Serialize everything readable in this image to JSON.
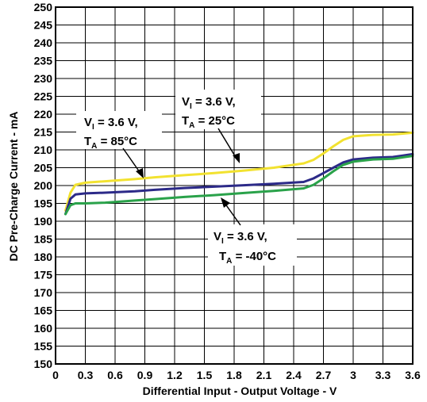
{
  "chart_data": {
    "type": "line",
    "xlabel": "Differential Input - Output Voltage - V",
    "ylabel": "DC Pre-Charge Current - mA",
    "xlim": [
      0,
      3.6
    ],
    "ylim": [
      150,
      250
    ],
    "x_ticks": [
      "0",
      "0.3",
      "0.6",
      "0.9",
      "1.2",
      "1.5",
      "1.8",
      "2.1",
      "2.4",
      "2.7",
      "3",
      "3.3",
      "3.6"
    ],
    "y_ticks": [
      "150",
      "155",
      "160",
      "165",
      "170",
      "175",
      "180",
      "185",
      "190",
      "195",
      "200",
      "205",
      "210",
      "215",
      "220",
      "225",
      "230",
      "235",
      "240",
      "245",
      "250"
    ],
    "grid": true,
    "series": [
      {
        "color": "#f2e230",
        "x": [
          0.1,
          0.15,
          0.2,
          0.3,
          0.5,
          0.8,
          1.0,
          1.3,
          1.6,
          1.9,
          2.2,
          2.5,
          2.6,
          2.7,
          2.8,
          2.9,
          3.0,
          3.2,
          3.4,
          3.6
        ],
        "y": [
          193,
          198,
          200.2,
          200.8,
          201.2,
          201.8,
          202.3,
          202.9,
          203.5,
          204.2,
          205,
          206.2,
          207.2,
          209,
          211,
          212.8,
          213.8,
          214.2,
          214.3,
          214.8
        ]
      },
      {
        "color": "#2c2a88",
        "x": [
          0.1,
          0.15,
          0.2,
          0.3,
          0.5,
          0.8,
          1.0,
          1.3,
          1.6,
          1.9,
          2.2,
          2.5,
          2.6,
          2.7,
          2.8,
          2.9,
          3.0,
          3.2,
          3.4,
          3.6
        ],
        "y": [
          192,
          196.3,
          197.5,
          197.8,
          198,
          198.4,
          198.8,
          199.3,
          199.7,
          200.1,
          200.5,
          201,
          202,
          203.5,
          205,
          206.5,
          207.3,
          207.8,
          208,
          208.8
        ]
      },
      {
        "color": "#2aa24a",
        "x": [
          0.1,
          0.15,
          0.2,
          0.3,
          0.5,
          0.8,
          1.0,
          1.3,
          1.6,
          1.9,
          2.2,
          2.5,
          2.6,
          2.7,
          2.8,
          2.9,
          3.0,
          3.2,
          3.4,
          3.6
        ],
        "y": [
          192,
          194.5,
          195,
          195,
          195.2,
          195.8,
          196.2,
          196.8,
          197.3,
          197.9,
          198.5,
          199.2,
          200.2,
          202,
          204,
          205.8,
          206.7,
          207.3,
          207.5,
          208.3
        ]
      }
    ],
    "annotations": [
      {
        "line1": {
          "main": "V",
          "sub": "I",
          "rest": " = 3.6 V,"
        },
        "line2": {
          "main": "T",
          "sub": "A",
          "rest": " = 85°C"
        }
      },
      {
        "line1": {
          "main": "V",
          "sub": "I",
          "rest": " = 3.6 V,"
        },
        "line2": {
          "main": "T",
          "sub": "A",
          "rest": " = 25°C"
        }
      },
      {
        "line1": {
          "main": "V",
          "sub": "I",
          "rest": " = 3.6 V,"
        },
        "line2": {
          "main": "T",
          "sub": "A",
          "rest": " = -40°C"
        }
      }
    ]
  }
}
